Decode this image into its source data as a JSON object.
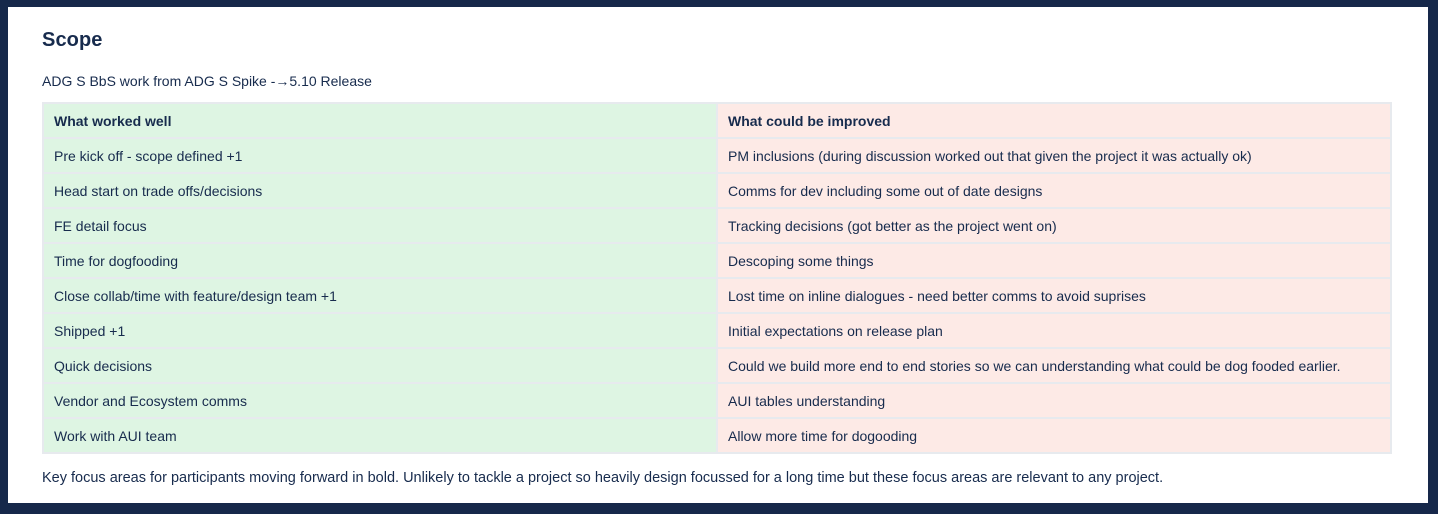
{
  "page": {
    "title": "Scope",
    "subtitle": "ADG S BbS work from ADG S Spike -→5.10 Release",
    "footnote": "Key focus areas for participants moving forward in bold. Unlikely to tackle a project so heavily design focussed for a long time but these focus areas are relevant to any project."
  },
  "table": {
    "headers": [
      {
        "label": "What worked well"
      },
      {
        "label": "What could be improved"
      }
    ],
    "rows": [
      {
        "left": {
          "text": "Pre kick off - scope defined +1",
          "bold": false
        },
        "right": {
          "text": "PM inclusions (during discussion worked out that given the project it was actually ok)",
          "bold": false
        }
      },
      {
        "left": {
          "text": "Head start on trade offs/decisions",
          "bold": false
        },
        "right": {
          "text": "Comms for dev including some out of date designs",
          "bold": false
        }
      },
      {
        "left": {
          "text": "FE detail focus",
          "bold": false
        },
        "right": {
          "text": "Tracking decisions (got better as the project went on)",
          "bold": true
        }
      },
      {
        "left": {
          "text": "Time for dogfooding",
          "bold": false
        },
        "right": {
          "text": "Descoping some things",
          "bold": false
        }
      },
      {
        "left": {
          "text": "Close collab/time with feature/design team +1",
          "bold": true
        },
        "right": {
          "text": "Lost time on inline dialogues - need better comms to avoid suprises",
          "bold": false
        }
      },
      {
        "left": {
          "text": "Shipped +1",
          "bold": false
        },
        "right": {
          "text": "Initial expectations on release plan",
          "bold": false
        }
      },
      {
        "left": {
          "text": "Quick decisions",
          "bold": false
        },
        "right": {
          "text": "Could we build more end to end stories so we can understanding what could be dog fooded earlier.",
          "bold": false
        }
      },
      {
        "left": {
          "text": "Vendor and Ecosystem comms",
          "bold": false
        },
        "right": {
          "text": "AUI tables understanding",
          "bold": false
        }
      },
      {
        "left": {
          "text": "Work with AUI team",
          "bold": false
        },
        "right": {
          "text": "Allow more time for dogooding",
          "bold": false
        }
      }
    ]
  },
  "colors": {
    "text": "#172b4d",
    "frame": "#16284a",
    "good_cell_bg": "#def5e3",
    "improve_cell_bg": "#fdeae6",
    "cell_border": "#e7eaee"
  }
}
